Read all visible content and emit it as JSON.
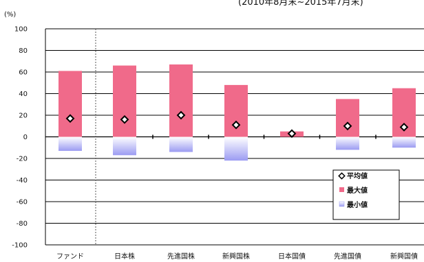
{
  "chart_data": {
    "type": "bar",
    "title": "",
    "period_note": "(2010年8月末~2015年7月末)",
    "unit_label": "(%)",
    "ylim": [
      -100,
      100
    ],
    "yticks": [
      100,
      80,
      60,
      40,
      20,
      0,
      -20,
      -40,
      -60,
      -80,
      -100
    ],
    "grid": true,
    "categories": [
      "ファンド",
      "日本株",
      "先進国株",
      "新興国株",
      "日本国債",
      "先進国債",
      "新興国債"
    ],
    "series": [
      {
        "name": "最大値",
        "values": [
          61,
          66,
          67,
          48,
          5,
          35,
          45
        ]
      },
      {
        "name": "最小値",
        "values": [
          -13,
          -17,
          -14,
          -22,
          0,
          -12,
          -10
        ]
      },
      {
        "name": "平均値",
        "values": [
          17,
          16,
          20,
          11,
          3,
          10,
          9
        ]
      }
    ],
    "legend": {
      "position": "bottom-right",
      "items": [
        "平均値",
        "最大値",
        "最小値"
      ]
    },
    "colors": {
      "max": "#f06a8a",
      "min_top": "#ffffff",
      "min_bottom": "#9b9bf2",
      "avg_marker": "#000000",
      "grid": "#000000",
      "separator": "#555555"
    }
  }
}
